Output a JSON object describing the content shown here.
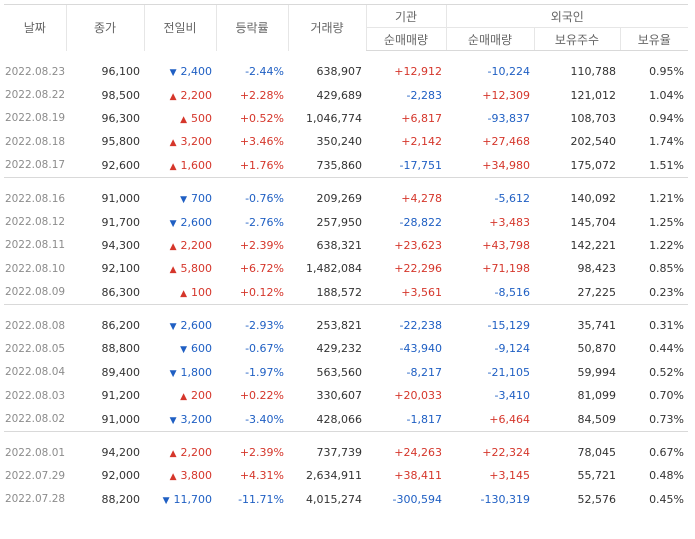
{
  "headers": {
    "date": "날짜",
    "close": "종가",
    "change": "전일비",
    "rate": "등락률",
    "volume": "거래량",
    "inst_group": "기관",
    "foreign_group": "외국인",
    "inst_net": "순매매량",
    "foreign_net": "순매매량",
    "foreign_shares": "보유주수",
    "foreign_ratio": "보유율"
  },
  "colors": {
    "up": "#d5362b",
    "down": "#1f5fc3"
  },
  "groups": [
    [
      {
        "date": "2022.08.23",
        "close": "96,100",
        "dir": "down",
        "diff": "2,400",
        "rate": "-2.44%",
        "vol": "638,907",
        "inst": "+12,912",
        "frn": "-10,224",
        "shares": "110,788",
        "ratio": "0.95%"
      },
      {
        "date": "2022.08.22",
        "close": "98,500",
        "dir": "up",
        "diff": "2,200",
        "rate": "+2.28%",
        "vol": "429,689",
        "inst": "-2,283",
        "frn": "+12,309",
        "shares": "121,012",
        "ratio": "1.04%"
      },
      {
        "date": "2022.08.19",
        "close": "96,300",
        "dir": "up",
        "diff": "500",
        "rate": "+0.52%",
        "vol": "1,046,774",
        "inst": "+6,817",
        "frn": "-93,837",
        "shares": "108,703",
        "ratio": "0.94%"
      },
      {
        "date": "2022.08.18",
        "close": "95,800",
        "dir": "up",
        "diff": "3,200",
        "rate": "+3.46%",
        "vol": "350,240",
        "inst": "+2,142",
        "frn": "+27,468",
        "shares": "202,540",
        "ratio": "1.74%"
      },
      {
        "date": "2022.08.17",
        "close": "92,600",
        "dir": "up",
        "diff": "1,600",
        "rate": "+1.76%",
        "vol": "735,860",
        "inst": "-17,751",
        "frn": "+34,980",
        "shares": "175,072",
        "ratio": "1.51%"
      }
    ],
    [
      {
        "date": "2022.08.16",
        "close": "91,000",
        "dir": "down",
        "diff": "700",
        "rate": "-0.76%",
        "vol": "209,269",
        "inst": "+4,278",
        "frn": "-5,612",
        "shares": "140,092",
        "ratio": "1.21%"
      },
      {
        "date": "2022.08.12",
        "close": "91,700",
        "dir": "down",
        "diff": "2,600",
        "rate": "-2.76%",
        "vol": "257,950",
        "inst": "-28,822",
        "frn": "+3,483",
        "shares": "145,704",
        "ratio": "1.25%"
      },
      {
        "date": "2022.08.11",
        "close": "94,300",
        "dir": "up",
        "diff": "2,200",
        "rate": "+2.39%",
        "vol": "638,321",
        "inst": "+23,623",
        "frn": "+43,798",
        "shares": "142,221",
        "ratio": "1.22%"
      },
      {
        "date": "2022.08.10",
        "close": "92,100",
        "dir": "up",
        "diff": "5,800",
        "rate": "+6.72%",
        "vol": "1,482,084",
        "inst": "+22,296",
        "frn": "+71,198",
        "shares": "98,423",
        "ratio": "0.85%"
      },
      {
        "date": "2022.08.09",
        "close": "86,300",
        "dir": "up",
        "diff": "100",
        "rate": "+0.12%",
        "vol": "188,572",
        "inst": "+3,561",
        "frn": "-8,516",
        "shares": "27,225",
        "ratio": "0.23%"
      }
    ],
    [
      {
        "date": "2022.08.08",
        "close": "86,200",
        "dir": "down",
        "diff": "2,600",
        "rate": "-2.93%",
        "vol": "253,821",
        "inst": "-22,238",
        "frn": "-15,129",
        "shares": "35,741",
        "ratio": "0.31%"
      },
      {
        "date": "2022.08.05",
        "close": "88,800",
        "dir": "down",
        "diff": "600",
        "rate": "-0.67%",
        "vol": "429,232",
        "inst": "-43,940",
        "frn": "-9,124",
        "shares": "50,870",
        "ratio": "0.44%"
      },
      {
        "date": "2022.08.04",
        "close": "89,400",
        "dir": "down",
        "diff": "1,800",
        "rate": "-1.97%",
        "vol": "563,560",
        "inst": "-8,217",
        "frn": "-21,105",
        "shares": "59,994",
        "ratio": "0.52%"
      },
      {
        "date": "2022.08.03",
        "close": "91,200",
        "dir": "up",
        "diff": "200",
        "rate": "+0.22%",
        "vol": "330,607",
        "inst": "+20,033",
        "frn": "-3,410",
        "shares": "81,099",
        "ratio": "0.70%"
      },
      {
        "date": "2022.08.02",
        "close": "91,000",
        "dir": "down",
        "diff": "3,200",
        "rate": "-3.40%",
        "vol": "428,066",
        "inst": "-1,817",
        "frn": "+6,464",
        "shares": "84,509",
        "ratio": "0.73%"
      }
    ],
    [
      {
        "date": "2022.08.01",
        "close": "94,200",
        "dir": "up",
        "diff": "2,200",
        "rate": "+2.39%",
        "vol": "737,739",
        "inst": "+24,263",
        "frn": "+22,324",
        "shares": "78,045",
        "ratio": "0.67%"
      },
      {
        "date": "2022.07.29",
        "close": "92,000",
        "dir": "up",
        "diff": "3,800",
        "rate": "+4.31%",
        "vol": "2,634,911",
        "inst": "+38,411",
        "frn": "+3,145",
        "shares": "55,721",
        "ratio": "0.48%"
      },
      {
        "date": "2022.07.28",
        "close": "88,200",
        "dir": "down",
        "diff": "11,700",
        "rate": "-11.71%",
        "vol": "4,015,274",
        "inst": "-300,594",
        "frn": "-130,319",
        "shares": "52,576",
        "ratio": "0.45%"
      }
    ]
  ]
}
